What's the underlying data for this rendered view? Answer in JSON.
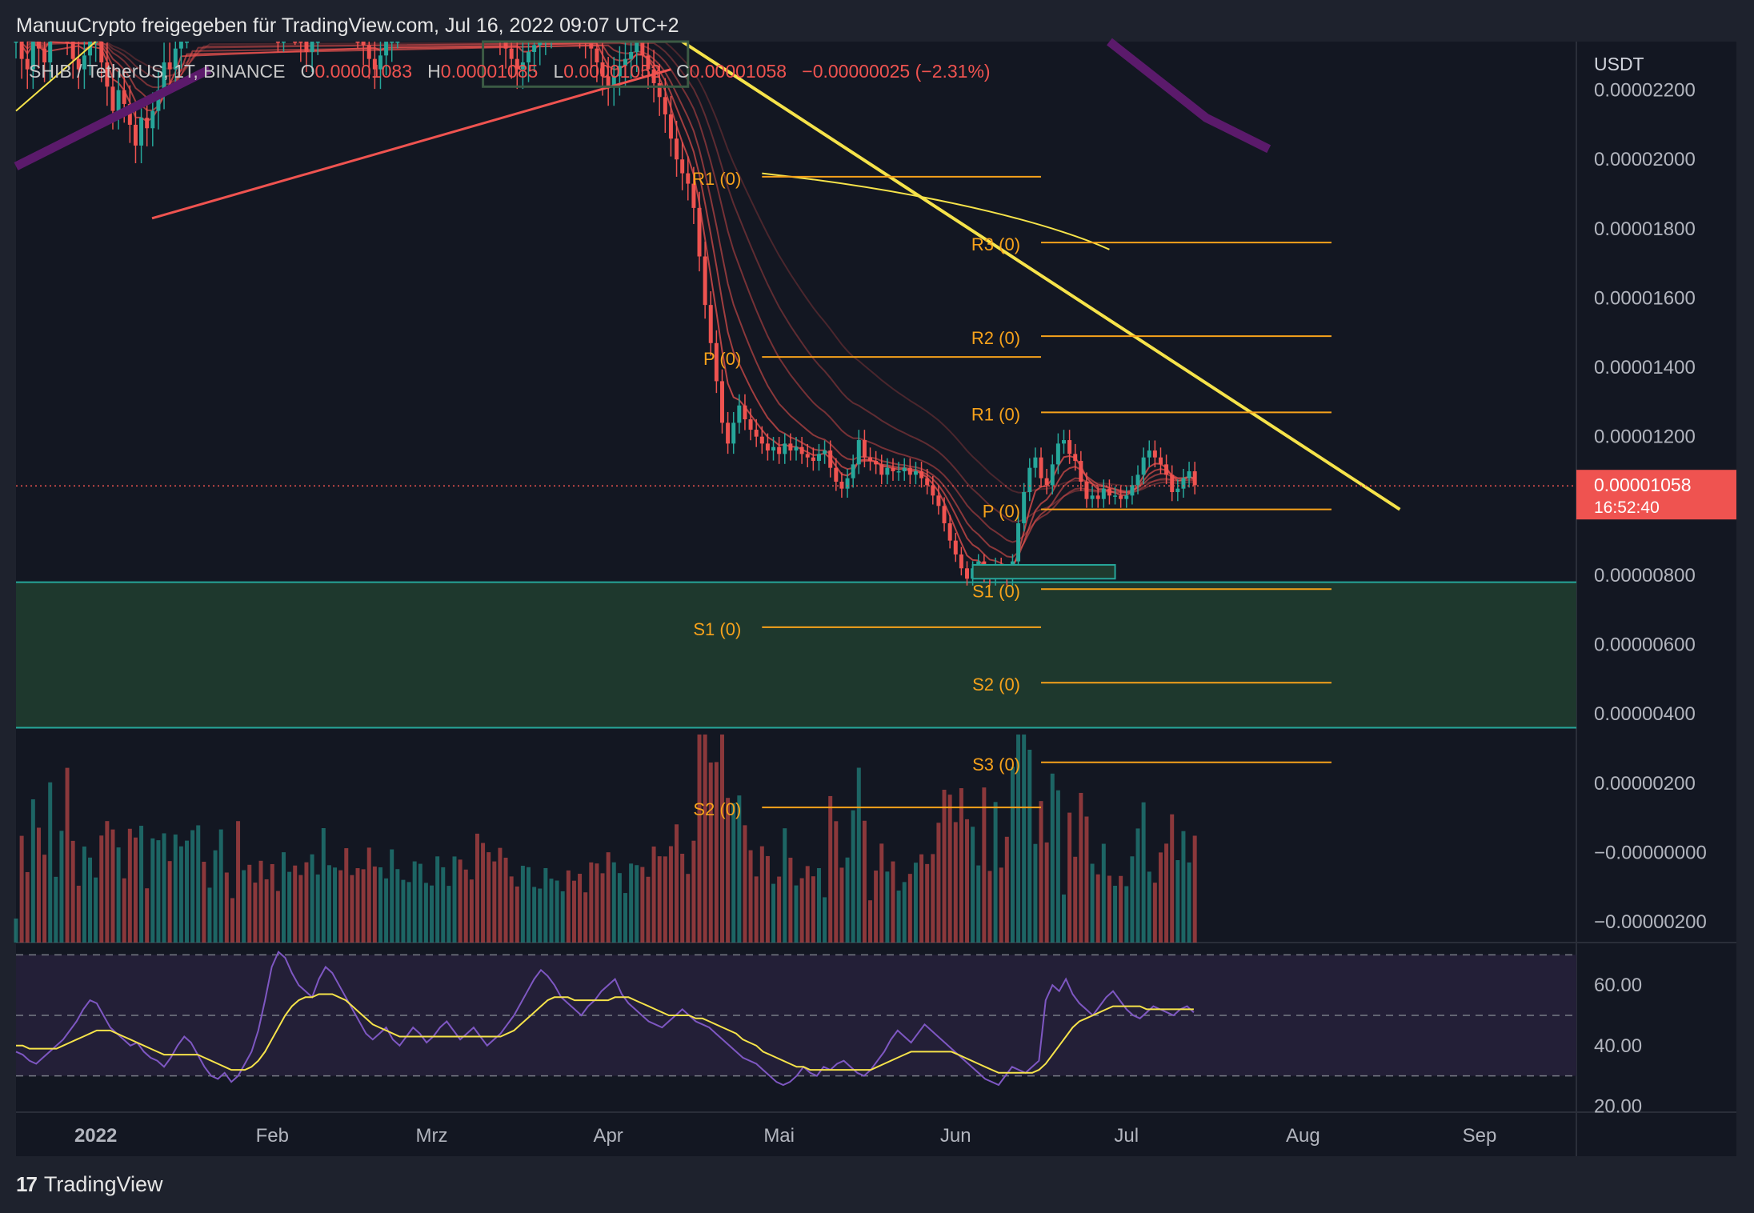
{
  "header": {
    "attribution": "ManuuCrypto freigegeben für TradingView.com, Jul 16, 2022 09:07 UTC+2"
  },
  "legend": {
    "symbol": "SHIB / TetherUS, 1T, BINANCE",
    "o_label": "O",
    "o_value": "0.00001083",
    "h_label": "H",
    "h_value": "0.00001085",
    "l_label": "L",
    "l_value": "0.00001052",
    "c_label": "C",
    "c_value": "0.00001058",
    "change": "−0.00000025 (−2.31%)"
  },
  "footer": {
    "brand": "TradingView",
    "logo_glyph": "17"
  },
  "colors": {
    "up": "#26a69a",
    "down": "#ef5350",
    "pivot": "#f7a21b",
    "trend": "#f6e34a",
    "rsi": "#7e57c2",
    "zone": "#1f3a2e",
    "zone_line": "#26a69a"
  },
  "chart_data": {
    "type": "candlestick",
    "price_axis": {
      "unit": "USDT",
      "ticks": [
        "0.00002200",
        "0.00002000",
        "0.00001800",
        "0.00001600",
        "0.00001400",
        "0.00001200",
        "0.00000800",
        "0.00000600",
        "0.00000400",
        "0.00000200",
        "−0.00000000",
        "−0.00000200"
      ],
      "tick_values": [
        2.2e-05,
        2e-05,
        1.8e-05,
        1.6e-05,
        1.4e-05,
        1.2e-05,
        8e-06,
        6e-06,
        4e-06,
        2e-06,
        0,
        -2e-06
      ],
      "range": [
        -2.6e-06,
        2.34e-05
      ]
    },
    "last_price": {
      "value": 1.058e-05,
      "label": "0.00001058",
      "countdown": "16:52:40"
    },
    "time_axis": {
      "labels": [
        "2022",
        "Feb",
        "Mrz",
        "Apr",
        "Mai",
        "Jun",
        "Jul",
        "Aug",
        "Sep"
      ],
      "label_days": [
        0,
        31,
        59,
        90,
        120,
        151,
        181,
        212,
        243
      ],
      "range_days": [
        -14,
        260
      ]
    },
    "price_closes": [
      2.35e-05,
      2.29e-05,
      2.26e-05,
      2.38e-05,
      2.32e-05,
      2.28e-05,
      2.41e-05,
      2.45e-05,
      2.51e-05,
      2.36e-05,
      2.29e-05,
      2.26e-05,
      2.3e-05,
      2.34e-05,
      2.37e-05,
      2.28e-05,
      2.21e-05,
      2.14e-05,
      2.2e-05,
      2.16e-05,
      2.1e-05,
      2.04e-05,
      2.12e-05,
      2.09e-05,
      2.14e-05,
      2.2e-05,
      2.28e-05,
      2.26e-05,
      2.32e-05,
      2.38e-05,
      2.46e-05,
      2.52e-05,
      2.6e-05,
      2.55e-05,
      2.58e-05,
      2.62e-05,
      2.7e-05,
      2.66e-05,
      2.64e-05,
      2.56e-05,
      2.59e-05,
      2.54e-05,
      2.5e-05,
      2.47e-05,
      2.45e-05,
      2.4e-05,
      2.37e-05,
      2.41e-05,
      2.44e-05,
      2.39e-05,
      2.34e-05,
      2.31e-05,
      2.36e-05,
      2.4e-05,
      2.46e-05,
      2.49e-05,
      2.53e-05,
      2.48e-05,
      2.44e-05,
      2.42e-05,
      2.38e-05,
      2.33e-05,
      2.29e-05,
      2.26e-05,
      2.3e-05,
      2.34e-05,
      2.38e-05,
      2.41e-05,
      2.44e-05,
      2.48e-05,
      2.51e-05,
      2.55e-05,
      2.58e-05,
      2.62e-05,
      2.66e-05,
      2.7e-05,
      2.73e-05,
      2.76e-05,
      2.72e-05,
      2.68e-05,
      2.64e-05,
      2.58e-05,
      2.52e-05,
      2.46e-05,
      2.4e-05,
      2.36e-05,
      2.32e-05,
      2.29e-05,
      2.26e-05,
      2.28e-05,
      2.31e-05,
      2.33e-05,
      2.36e-05,
      2.38e-05,
      2.4e-05,
      2.43e-05,
      2.46e-05,
      2.44e-05,
      2.42e-05,
      2.38e-05,
      2.35e-05,
      2.32e-05,
      2.28e-05,
      2.24e-05,
      2.21e-05,
      2.24e-05,
      2.27e-05,
      2.29e-05,
      2.31e-05,
      2.34e-05,
      2.3e-05,
      2.26e-05,
      2.22e-05,
      2.18e-05,
      2.13e-05,
      2.06e-05,
      2e-05,
      1.96e-05,
      1.93e-05,
      1.86e-05,
      1.72e-05,
      1.58e-05,
      1.47e-05,
      1.36e-05,
      1.24e-05,
      1.18e-05,
      1.24e-05,
      1.29e-05,
      1.25e-05,
      1.22e-05,
      1.2e-05,
      1.18e-05,
      1.16e-05,
      1.17e-05,
      1.15e-05,
      1.18e-05,
      1.16e-05,
      1.17e-05,
      1.15e-05,
      1.14e-05,
      1.13e-05,
      1.15e-05,
      1.16e-05,
      1.11e-05,
      1.07e-05,
      1.05e-05,
      1.08e-05,
      1.12e-05,
      1.19e-05,
      1.14e-05,
      1.13e-05,
      1.12e-05,
      1.09e-05,
      1.11e-05,
      1.1e-05,
      1.1e-05,
      1.11e-05,
      1.09e-05,
      1.1e-05,
      1.08e-05,
      1.06e-05,
      1.03e-05,
      1e-05,
      9.5e-06,
      9e-06,
      8.6e-06,
      8.2e-06,
      7.9e-06,
      8.2e-06,
      8.4e-06,
      8e-06,
      7.9e-06,
      8.3e-06,
      8.1e-06,
      7.9e-06,
      8.4e-06,
      9.5e-06,
      1.04e-05,
      1.11e-05,
      1.14e-05,
      1.08e-05,
      1.06e-05,
      1.12e-05,
      1.18e-05,
      1.19e-05,
      1.15e-05,
      1.13e-05,
      1.07e-05,
      1.02e-05,
      1.03e-05,
      1.02e-05,
      1.05e-05,
      1.03e-05,
      1.03e-05,
      1.02e-05,
      1.03e-05,
      1.06e-05,
      1.09e-05,
      1.14e-05,
      1.16e-05,
      1.14e-05,
      1.12e-05,
      1.09e-05,
      1.04e-05,
      1.05e-05,
      1.08e-05,
      1.1e-05,
      1.06e-05
    ],
    "pivot_levels": [
      {
        "label": "R1 (0)",
        "value": 1.95e-05,
        "from_day": 117,
        "to_day": 166
      },
      {
        "label": "P (0)",
        "value": 1.43e-05,
        "from_day": 117,
        "to_day": 166
      },
      {
        "label": "S1 (0)",
        "value": 6.5e-06,
        "from_day": 117,
        "to_day": 166
      },
      {
        "label": "S2 (0)",
        "value": 1.3e-06,
        "from_day": 117,
        "to_day": 166
      },
      {
        "label": "R3 (0)",
        "value": 1.76e-05,
        "from_day": 166,
        "to_day": 217
      },
      {
        "label": "R2 (0)",
        "value": 1.49e-05,
        "from_day": 166,
        "to_day": 217
      },
      {
        "label": "R1 (0)",
        "value": 1.27e-05,
        "from_day": 166,
        "to_day": 217
      },
      {
        "label": "P (0)",
        "value": 9.9e-06,
        "from_day": 166,
        "to_day": 217
      },
      {
        "label": "S1 (0)",
        "value": 7.6e-06,
        "from_day": 166,
        "to_day": 217
      },
      {
        "label": "S2 (0)",
        "value": 4.9e-06,
        "from_day": 166,
        "to_day": 217
      },
      {
        "label": "S3 (0)",
        "value": 2.6e-06,
        "from_day": 166,
        "to_day": 217
      }
    ],
    "support_zone": {
      "top": 7.8e-06,
      "bottom": 3.6e-06
    },
    "rsi": {
      "axis_ticks": [
        "60.00",
        "40.00",
        "20.00"
      ],
      "tick_values": [
        60,
        40,
        20
      ],
      "range": [
        18,
        73
      ],
      "bands": [
        30,
        50,
        70
      ],
      "values": [
        38,
        37,
        35,
        34,
        36,
        38,
        40,
        42,
        45,
        48,
        52,
        55,
        54,
        50,
        46,
        44,
        42,
        40,
        41,
        38,
        36,
        35,
        33,
        36,
        40,
        43,
        41,
        37,
        33,
        30,
        29,
        31,
        28,
        30,
        34,
        38,
        45,
        55,
        66,
        71,
        69,
        64,
        60,
        58,
        56,
        62,
        66,
        64,
        60,
        56,
        52,
        48,
        44,
        42,
        44,
        46,
        42,
        40,
        43,
        46,
        44,
        41,
        43,
        46,
        48,
        45,
        42,
        44,
        46,
        43,
        40,
        42,
        44,
        47,
        50,
        54,
        58,
        62,
        65,
        63,
        60,
        56,
        54,
        52,
        50,
        53,
        55,
        58,
        60,
        62,
        57,
        54,
        52,
        50,
        48,
        47,
        46,
        48,
        50,
        52,
        50,
        48,
        47,
        46,
        44,
        42,
        40,
        38,
        36,
        35,
        34,
        32,
        30,
        28,
        27,
        28,
        30,
        33,
        31,
        30,
        33,
        32,
        34,
        35,
        33,
        31,
        30,
        32,
        35,
        38,
        42,
        45,
        43,
        41,
        44,
        47,
        45,
        43,
        41,
        39,
        37,
        35,
        33,
        31,
        29,
        28,
        27,
        30,
        33,
        32,
        31,
        33,
        35,
        55,
        60,
        58,
        62,
        57,
        54,
        52,
        50,
        53,
        56,
        58,
        55,
        52,
        50,
        49,
        51,
        53,
        52,
        51,
        50,
        52,
        53,
        51
      ],
      "ma": [
        40,
        40,
        39,
        39,
        39,
        39,
        39,
        40,
        41,
        42,
        43,
        44,
        45,
        45,
        45,
        44,
        43,
        42,
        41,
        40,
        39,
        38,
        37,
        37,
        37,
        37,
        37,
        37,
        36,
        35,
        34,
        33,
        32,
        32,
        32,
        33,
        35,
        38,
        42,
        46,
        50,
        53,
        55,
        56,
        56,
        57,
        57,
        57,
        56,
        55,
        53,
        51,
        49,
        47,
        46,
        45,
        44,
        43,
        43,
        43,
        43,
        43,
        43,
        43,
        43,
        43,
        43,
        43,
        43,
        43,
        43,
        43,
        43,
        44,
        45,
        47,
        49,
        51,
        53,
        55,
        56,
        56,
        56,
        55,
        55,
        55,
        55,
        55,
        55,
        56,
        56,
        56,
        55,
        54,
        53,
        52,
        51,
        50,
        50,
        50,
        50,
        49,
        49,
        48,
        47,
        46,
        45,
        44,
        42,
        41,
        40,
        38,
        37,
        36,
        35,
        34,
        33,
        33,
        32,
        32,
        32,
        32,
        32,
        32,
        32,
        32,
        32,
        32,
        33,
        34,
        35,
        36,
        37,
        38,
        38,
        38,
        38,
        38,
        38,
        38,
        37,
        36,
        35,
        34,
        33,
        32,
        31,
        31,
        31,
        31,
        31,
        31,
        32,
        34,
        37,
        40,
        43,
        46,
        48,
        49,
        50,
        51,
        52,
        53,
        53,
        53,
        53,
        53,
        52,
        52,
        52,
        52,
        52,
        52,
        52,
        52
      ]
    }
  }
}
